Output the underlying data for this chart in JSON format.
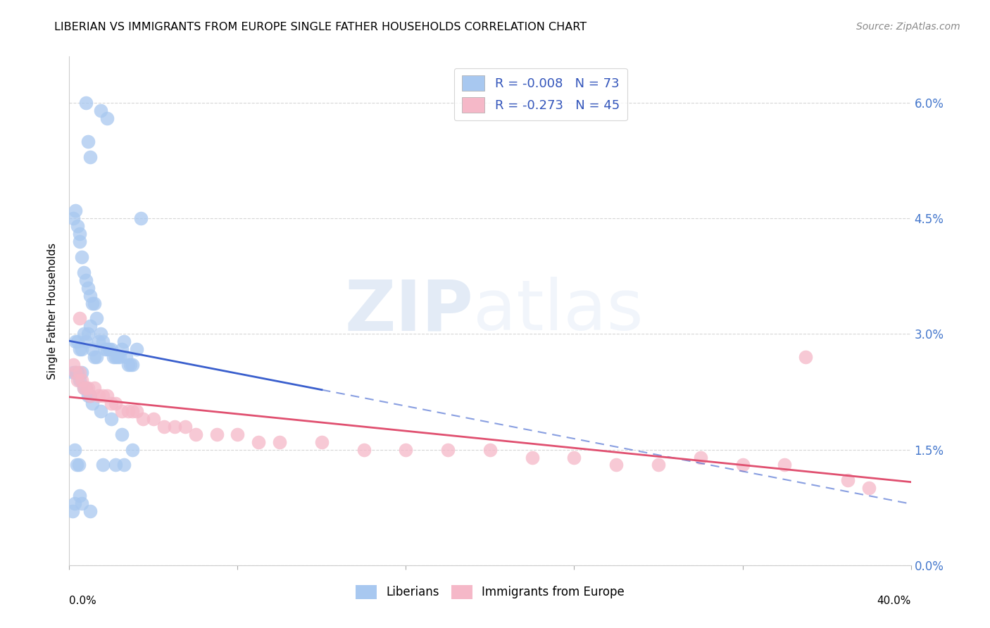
{
  "title": "LIBERIAN VS IMMIGRANTS FROM EUROPE SINGLE FATHER HOUSEHOLDS CORRELATION CHART",
  "source": "Source: ZipAtlas.com",
  "ylabel": "Single Father Households",
  "ytick_vals": [
    0.0,
    1.5,
    3.0,
    4.5,
    6.0
  ],
  "xlim": [
    0.0,
    40.0
  ],
  "ylim": [
    0.0,
    6.6
  ],
  "legend_R": [
    -0.008,
    -0.273
  ],
  "legend_N": [
    73,
    45
  ],
  "blue_color": "#A8C8F0",
  "pink_color": "#F5B8C8",
  "regression_blue": "#3A5FCD",
  "regression_pink": "#E05070",
  "watermark_zip": "ZIP",
  "watermark_atlas": "atlas",
  "blue_x": [
    0.8,
    1.5,
    1.8,
    0.9,
    1.0,
    0.3,
    0.2,
    0.4,
    0.5,
    0.5,
    0.6,
    0.7,
    0.8,
    0.9,
    1.0,
    1.1,
    1.2,
    1.3,
    1.4,
    1.5,
    1.6,
    1.7,
    1.8,
    1.9,
    2.0,
    2.1,
    2.2,
    2.3,
    2.4,
    2.5,
    2.6,
    2.7,
    2.8,
    2.9,
    3.0,
    3.2,
    3.4,
    0.3,
    0.4,
    0.5,
    0.6,
    0.7,
    0.8,
    0.9,
    1.0,
    1.1,
    1.2,
    1.3,
    0.2,
    0.3,
    0.4,
    0.5,
    0.6,
    0.7,
    0.8,
    0.9,
    1.0,
    1.1,
    1.5,
    2.0,
    2.5,
    3.0,
    0.25,
    0.35,
    0.45,
    1.6,
    2.2,
    2.6,
    0.15,
    0.25,
    0.5,
    0.6,
    1.0
  ],
  "blue_y": [
    6.0,
    5.9,
    5.8,
    5.5,
    5.3,
    4.6,
    4.5,
    4.4,
    4.3,
    4.2,
    4.0,
    3.8,
    3.7,
    3.6,
    3.5,
    3.4,
    3.4,
    3.2,
    2.9,
    3.0,
    2.9,
    2.8,
    2.8,
    2.8,
    2.8,
    2.7,
    2.7,
    2.7,
    2.7,
    2.8,
    2.9,
    2.7,
    2.6,
    2.6,
    2.6,
    2.8,
    4.5,
    2.9,
    2.9,
    2.8,
    2.8,
    3.0,
    2.9,
    3.0,
    3.1,
    2.8,
    2.7,
    2.7,
    2.5,
    2.5,
    2.5,
    2.4,
    2.5,
    2.3,
    2.3,
    2.2,
    2.2,
    2.1,
    2.0,
    1.9,
    1.7,
    1.5,
    1.5,
    1.3,
    1.3,
    1.3,
    1.3,
    1.3,
    0.7,
    0.8,
    0.9,
    0.8,
    0.7
  ],
  "pink_x": [
    0.2,
    0.3,
    0.4,
    0.5,
    0.6,
    0.7,
    0.8,
    0.9,
    1.0,
    1.2,
    1.4,
    1.6,
    1.8,
    2.0,
    2.2,
    2.5,
    2.8,
    3.0,
    3.2,
    3.5,
    4.0,
    4.5,
    5.0,
    5.5,
    6.0,
    7.0,
    8.0,
    9.0,
    10.0,
    12.0,
    14.0,
    16.0,
    18.0,
    20.0,
    22.0,
    24.0,
    26.0,
    28.0,
    30.0,
    32.0,
    34.0,
    35.0,
    37.0,
    38.0,
    0.5
  ],
  "pink_y": [
    2.6,
    2.5,
    2.4,
    2.5,
    2.4,
    2.3,
    2.3,
    2.3,
    2.2,
    2.3,
    2.2,
    2.2,
    2.2,
    2.1,
    2.1,
    2.0,
    2.0,
    2.0,
    2.0,
    1.9,
    1.9,
    1.8,
    1.8,
    1.8,
    1.7,
    1.7,
    1.7,
    1.6,
    1.6,
    1.6,
    1.5,
    1.5,
    1.5,
    1.5,
    1.4,
    1.4,
    1.3,
    1.3,
    1.4,
    1.3,
    1.3,
    2.7,
    1.1,
    1.0,
    3.2
  ]
}
